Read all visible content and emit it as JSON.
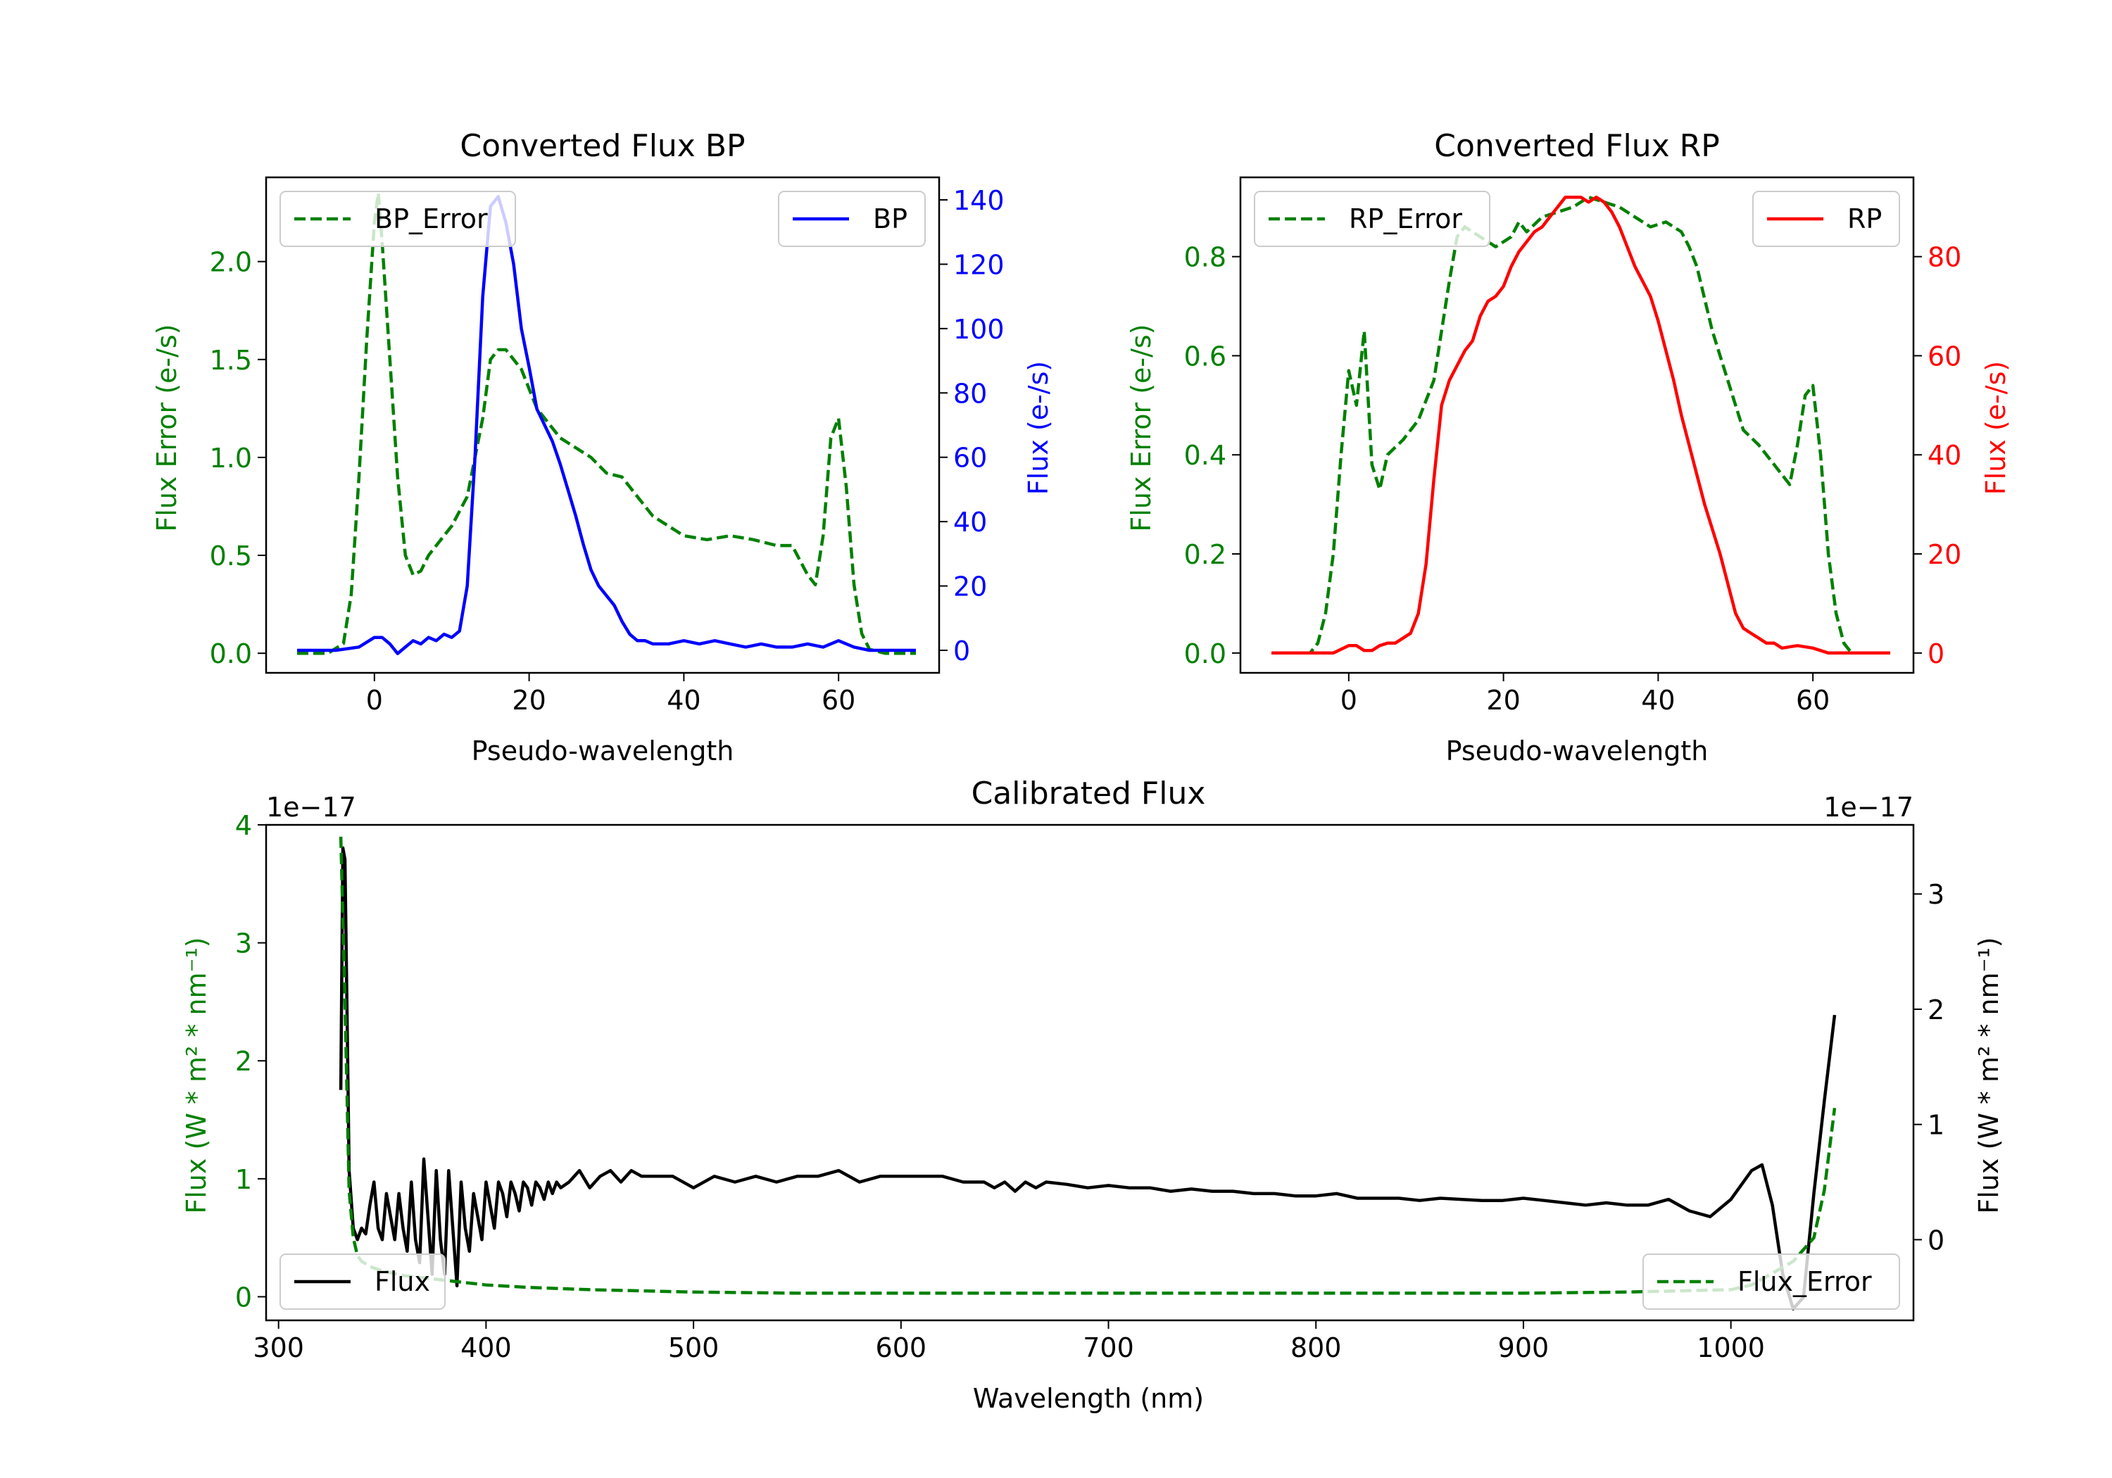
{
  "chart_data": [
    {
      "type": "line",
      "id": "bp",
      "title": "Converted Flux BP",
      "xlabel": "Pseudo-wavelength",
      "xlim": [
        -14,
        73
      ],
      "xticks": [
        0,
        20,
        40,
        60
      ],
      "left_axis": {
        "label": "Flux Error (e-/s)",
        "color": "#008000",
        "ylim": [
          -0.1,
          2.43
        ],
        "ticks": [
          0.0,
          0.5,
          1.0,
          1.5,
          2.0
        ],
        "tick_labels": [
          "0.0",
          "0.5",
          "1.0",
          "1.5",
          "2.0"
        ]
      },
      "right_axis": {
        "label": "Flux (e-/s)",
        "color": "#0000ff",
        "ylim": [
          -7,
          147
        ],
        "ticks": [
          0,
          20,
          40,
          60,
          80,
          100,
          120,
          140
        ],
        "tick_labels": [
          "0",
          "20",
          "40",
          "60",
          "80",
          "100",
          "120",
          "140"
        ]
      },
      "series": [
        {
          "name": "BP_Error",
          "axis": "left",
          "style": "dashed",
          "color": "#008000",
          "x": [
            -10,
            -6,
            -4,
            -3,
            -2,
            -1,
            0,
            0.5,
            1,
            2,
            3,
            4,
            5,
            6,
            7,
            8,
            10,
            12,
            13,
            14,
            15,
            16,
            17,
            18,
            19,
            20,
            21,
            22,
            23,
            24,
            26,
            28,
            30,
            32,
            34,
            36,
            38,
            40,
            43,
            46,
            49,
            52,
            54,
            56,
            57,
            58,
            59,
            60,
            61,
            62,
            63,
            64,
            66,
            70
          ],
          "y": [
            0.0,
            0.0,
            0.05,
            0.3,
            0.9,
            1.6,
            2.2,
            2.35,
            2.1,
            1.5,
            0.9,
            0.5,
            0.4,
            0.42,
            0.5,
            0.55,
            0.65,
            0.8,
            1.0,
            1.2,
            1.5,
            1.55,
            1.55,
            1.5,
            1.45,
            1.35,
            1.25,
            1.2,
            1.15,
            1.1,
            1.05,
            1.0,
            0.92,
            0.9,
            0.8,
            0.7,
            0.65,
            0.6,
            0.58,
            0.6,
            0.58,
            0.55,
            0.55,
            0.4,
            0.35,
            0.6,
            1.1,
            1.2,
            0.85,
            0.35,
            0.1,
            0.02,
            0.0,
            0.0
          ]
        },
        {
          "name": "BP",
          "axis": "right",
          "style": "solid",
          "color": "#0000ff",
          "x": [
            -10,
            -5,
            -2,
            0,
            1,
            2,
            3,
            4,
            5,
            6,
            7,
            8,
            9,
            10,
            11,
            12,
            13,
            14,
            15,
            16,
            17,
            18,
            19,
            20,
            21,
            22,
            23,
            24,
            25,
            26,
            27,
            28,
            29,
            30,
            31,
            32,
            33,
            34,
            35,
            36,
            37,
            38,
            40,
            42,
            44,
            46,
            48,
            50,
            52,
            54,
            56,
            58,
            60,
            62,
            64,
            66,
            70
          ],
          "y": [
            0,
            0,
            1,
            4,
            4,
            2,
            -1,
            1,
            3,
            2,
            4,
            3,
            5,
            4,
            6,
            20,
            60,
            110,
            138,
            141,
            133,
            120,
            100,
            88,
            75,
            70,
            65,
            58,
            50,
            42,
            33,
            25,
            20,
            17,
            14,
            9,
            5,
            3,
            3,
            2,
            2,
            2,
            3,
            2,
            3,
            2,
            1,
            2,
            1,
            1,
            2,
            1,
            3,
            1,
            0,
            0,
            0
          ]
        }
      ],
      "legend": [
        {
          "label": "BP_Error",
          "position": "upper-left"
        },
        {
          "label": "BP",
          "position": "upper-right"
        }
      ]
    },
    {
      "type": "line",
      "id": "rp",
      "title": "Converted Flux RP",
      "xlabel": "Pseudo-wavelength",
      "xlim": [
        -14,
        73
      ],
      "xticks": [
        0,
        20,
        40,
        60
      ],
      "left_axis": {
        "label": "Flux Error (e-/s)",
        "color": "#008000",
        "ylim": [
          -0.04,
          0.96
        ],
        "ticks": [
          0.0,
          0.2,
          0.4,
          0.6,
          0.8
        ],
        "tick_labels": [
          "0.0",
          "0.2",
          "0.4",
          "0.6",
          "0.8"
        ]
      },
      "right_axis": {
        "label": "Flux (e-/s)",
        "color": "#ff0000",
        "ylim": [
          -4,
          96
        ],
        "ticks": [
          0,
          20,
          40,
          60,
          80
        ],
        "tick_labels": [
          "0",
          "20",
          "40",
          "60",
          "80"
        ]
      },
      "series": [
        {
          "name": "RP_Error",
          "axis": "left",
          "style": "dashed",
          "color": "#008000",
          "x": [
            -10,
            -5,
            -4,
            -3,
            -2,
            -1,
            0,
            1,
            2,
            3,
            4,
            5,
            7,
            9,
            11,
            12,
            13,
            14,
            15,
            17,
            19,
            21,
            22,
            23,
            25,
            27,
            29,
            31,
            33,
            35,
            37,
            39,
            41,
            43,
            44,
            45,
            47,
            49,
            51,
            53,
            55,
            56,
            57,
            58,
            59,
            60,
            61,
            62,
            63,
            64,
            65,
            70
          ],
          "y": [
            0.0,
            0.0,
            0.02,
            0.08,
            0.2,
            0.4,
            0.57,
            0.5,
            0.65,
            0.38,
            0.33,
            0.4,
            0.43,
            0.47,
            0.55,
            0.65,
            0.75,
            0.84,
            0.86,
            0.84,
            0.82,
            0.84,
            0.87,
            0.85,
            0.88,
            0.89,
            0.9,
            0.92,
            0.91,
            0.9,
            0.88,
            0.86,
            0.87,
            0.85,
            0.82,
            0.78,
            0.65,
            0.55,
            0.45,
            0.42,
            0.38,
            0.36,
            0.34,
            0.42,
            0.52,
            0.54,
            0.4,
            0.2,
            0.08,
            0.02,
            0.0,
            0.0
          ]
        },
        {
          "name": "RP",
          "axis": "right",
          "style": "solid",
          "color": "#ff0000",
          "x": [
            -10,
            -5,
            -2,
            0,
            1,
            2,
            3,
            4,
            5,
            6,
            8,
            9,
            10,
            11,
            12,
            13,
            14,
            15,
            16,
            17,
            18,
            19,
            20,
            21,
            22,
            23,
            24,
            25,
            26,
            27,
            28,
            29,
            30,
            31,
            32,
            33,
            34,
            35,
            36,
            37,
            38,
            39,
            40,
            41,
            42,
            43,
            44,
            45,
            46,
            47,
            48,
            49,
            50,
            51,
            52,
            53,
            54,
            55,
            56,
            58,
            60,
            62,
            64,
            66,
            70
          ],
          "y": [
            0,
            0,
            0,
            1.5,
            1.5,
            0.5,
            0.5,
            1.5,
            2,
            2,
            4,
            8,
            18,
            35,
            50,
            55,
            58,
            61,
            63,
            68,
            71,
            72,
            74,
            78,
            81,
            83,
            85,
            86,
            88,
            90,
            92,
            92,
            92,
            91,
            92,
            91,
            89,
            86,
            82,
            78,
            75,
            72,
            67,
            61,
            55,
            48,
            42,
            36,
            30,
            25,
            20,
            14,
            8,
            5,
            4,
            3,
            2,
            2,
            1,
            1.5,
            1,
            0,
            0,
            0,
            0
          ]
        }
      ],
      "legend": [
        {
          "label": "RP_Error",
          "position": "upper-left"
        },
        {
          "label": "RP",
          "position": "upper-right"
        }
      ]
    },
    {
      "type": "line",
      "id": "calibrated",
      "title": "Calibrated Flux",
      "xlabel": "Wavelength (nm)",
      "xlim": [
        294,
        1088
      ],
      "xticks": [
        300,
        400,
        500,
        600,
        700,
        800,
        900,
        1000
      ],
      "left_axis": {
        "label": "Flux (W * m² * nm⁻¹)",
        "color": "#008000",
        "ylim": [
          -0.2,
          4.0
        ],
        "ticks": [
          0,
          1,
          2,
          3,
          4
        ],
        "tick_labels": [
          "0",
          "1",
          "2",
          "3",
          "4"
        ],
        "offset_label": "1e−17"
      },
      "right_axis": {
        "label": "Flux (W * m² * nm⁻¹)",
        "color": "#000000",
        "ylim": [
          -0.7,
          3.6
        ],
        "ticks": [
          0,
          1,
          2,
          3
        ],
        "tick_labels": [
          "0",
          "1",
          "2",
          "3"
        ],
        "offset_label": "1e−17"
      },
      "series": [
        {
          "name": "Flux",
          "axis": "right",
          "style": "solid",
          "color": "#000000",
          "x": [
            330,
            331,
            332,
            333,
            334,
            336,
            338,
            340,
            342,
            344,
            346,
            348,
            350,
            352,
            354,
            356,
            358,
            360,
            362,
            364,
            366,
            368,
            370,
            372,
            374,
            376,
            378,
            380,
            382,
            384,
            386,
            388,
            390,
            392,
            394,
            396,
            398,
            400,
            402,
            404,
            406,
            408,
            410,
            412,
            414,
            416,
            418,
            420,
            422,
            424,
            426,
            428,
            430,
            432,
            434,
            436,
            440,
            445,
            450,
            455,
            460,
            465,
            470,
            475,
            480,
            490,
            500,
            510,
            520,
            530,
            540,
            550,
            560,
            570,
            580,
            590,
            600,
            610,
            620,
            630,
            640,
            645,
            650,
            655,
            660,
            665,
            670,
            680,
            690,
            700,
            710,
            720,
            730,
            740,
            750,
            760,
            770,
            780,
            790,
            800,
            810,
            820,
            830,
            840,
            850,
            860,
            870,
            880,
            890,
            900,
            910,
            920,
            930,
            940,
            950,
            960,
            970,
            980,
            990,
            1000,
            1010,
            1015,
            1020,
            1025,
            1030,
            1035,
            1040,
            1045,
            1050
          ],
          "y": [
            1.3,
            3.4,
            3.3,
            2.0,
            0.6,
            0.1,
            0.0,
            0.1,
            0.05,
            0.3,
            0.5,
            0.1,
            0.0,
            0.4,
            0.2,
            0.0,
            0.4,
            0.1,
            -0.1,
            0.5,
            0.0,
            -0.2,
            0.7,
            0.2,
            -0.3,
            0.6,
            0.0,
            -0.3,
            0.6,
            0.1,
            -0.4,
            0.5,
            0.1,
            -0.1,
            0.4,
            0.2,
            0.0,
            0.5,
            0.3,
            0.1,
            0.5,
            0.4,
            0.2,
            0.5,
            0.4,
            0.25,
            0.5,
            0.45,
            0.3,
            0.5,
            0.45,
            0.35,
            0.5,
            0.4,
            0.5,
            0.45,
            0.5,
            0.6,
            0.45,
            0.55,
            0.6,
            0.5,
            0.6,
            0.55,
            0.55,
            0.55,
            0.45,
            0.55,
            0.5,
            0.55,
            0.5,
            0.55,
            0.55,
            0.6,
            0.5,
            0.55,
            0.55,
            0.55,
            0.55,
            0.5,
            0.5,
            0.45,
            0.5,
            0.42,
            0.5,
            0.45,
            0.5,
            0.48,
            0.45,
            0.47,
            0.45,
            0.45,
            0.42,
            0.44,
            0.42,
            0.42,
            0.4,
            0.4,
            0.38,
            0.38,
            0.4,
            0.36,
            0.36,
            0.36,
            0.34,
            0.36,
            0.35,
            0.34,
            0.34,
            0.36,
            0.34,
            0.32,
            0.3,
            0.32,
            0.3,
            0.3,
            0.35,
            0.25,
            0.2,
            0.35,
            0.6,
            0.65,
            0.3,
            -0.3,
            -0.6,
            -0.5,
            0.4,
            1.2,
            1.95
          ]
        },
        {
          "name": "Flux_Error",
          "axis": "left",
          "style": "dashed",
          "color": "#008000",
          "x": [
            330,
            332,
            334,
            336,
            338,
            340,
            345,
            350,
            360,
            380,
            400,
            420,
            450,
            500,
            550,
            600,
            650,
            700,
            750,
            800,
            850,
            900,
            950,
            1000,
            1010,
            1020,
            1030,
            1040,
            1045,
            1050
          ],
          "y": [
            3.9,
            2.5,
            0.9,
            0.5,
            0.35,
            0.3,
            0.25,
            0.22,
            0.18,
            0.14,
            0.1,
            0.08,
            0.06,
            0.04,
            0.03,
            0.03,
            0.03,
            0.03,
            0.03,
            0.03,
            0.03,
            0.03,
            0.04,
            0.06,
            0.1,
            0.2,
            0.3,
            0.5,
            0.9,
            1.6
          ]
        }
      ],
      "legend": [
        {
          "label": "Flux",
          "position": "lower-left"
        },
        {
          "label": "Flux_Error",
          "position": "lower-right"
        }
      ]
    }
  ]
}
